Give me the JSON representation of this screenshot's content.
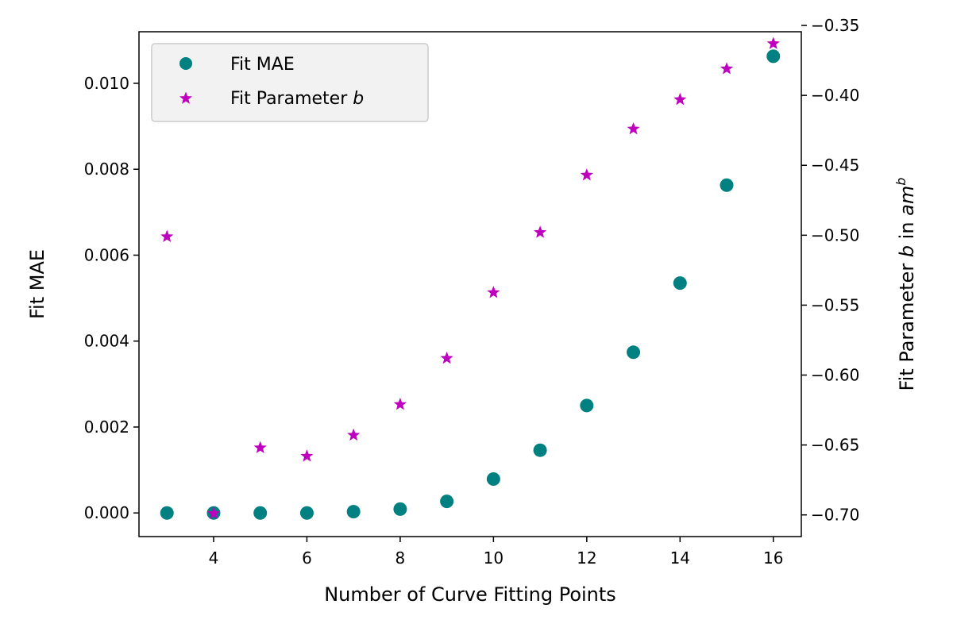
{
  "chart_data": {
    "type": "scatter",
    "xlabel": "Number of Curve Fitting Points",
    "ylabel_left": "Fit MAE",
    "ylabel_right": {
      "prefix": "Fit Parameter ",
      "var": "b",
      "middle": " in ",
      "base": "am",
      "sup": "b"
    },
    "x_ticks": [
      4,
      6,
      8,
      10,
      12,
      14,
      16
    ],
    "y_left_ticks": [
      0.0,
      0.002,
      0.004,
      0.006,
      0.008,
      0.01
    ],
    "y_left_tick_labels": [
      "0.000",
      "0.002",
      "0.004",
      "0.006",
      "0.008",
      "0.010"
    ],
    "y_right_ticks": [
      -0.7,
      -0.65,
      -0.6,
      -0.55,
      -0.5,
      -0.45,
      -0.4,
      -0.35
    ],
    "y_right_tick_labels": [
      "−0.70",
      "−0.65",
      "−0.60",
      "−0.55",
      "−0.50",
      "−0.45",
      "−0.40",
      "−0.35"
    ],
    "xlim": [
      2.4,
      16.6
    ],
    "ylim_left": [
      -0.00055,
      0.0112
    ],
    "ylim_right": [
      -0.7155,
      -0.3545
    ],
    "grid": false,
    "legend_position": "top-left",
    "series": [
      {
        "name": "Fit MAE",
        "axis": "left",
        "marker": "circle",
        "color": "#008080",
        "x": [
          3,
          4,
          5,
          6,
          7,
          8,
          9,
          10,
          11,
          12,
          13,
          14,
          15,
          16
        ],
        "y": [
          0.0,
          0.0,
          0.0,
          0.0,
          3e-05,
          9e-05,
          0.00027,
          0.00079,
          0.00146,
          0.0025,
          0.00374,
          0.00535,
          0.00763,
          0.01063
        ]
      },
      {
        "name_prefix": "Fit Parameter ",
        "name_var": "b",
        "axis": "right",
        "marker": "star",
        "color": "#bf00bf",
        "x": [
          3,
          4,
          5,
          6,
          7,
          8,
          9,
          10,
          11,
          12,
          13,
          14,
          15,
          16
        ],
        "y": [
          -0.501,
          -0.699,
          -0.652,
          -0.658,
          -0.643,
          -0.621,
          -0.588,
          -0.541,
          -0.498,
          -0.457,
          -0.424,
          -0.403,
          -0.381,
          -0.363
        ]
      }
    ]
  }
}
